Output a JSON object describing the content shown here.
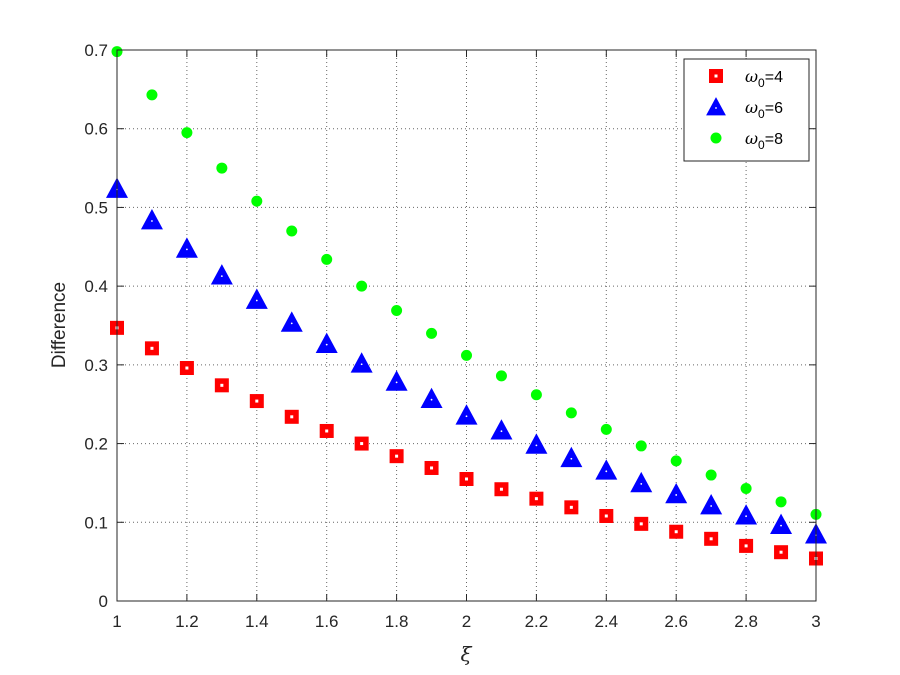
{
  "chart_data": {
    "type": "scatter",
    "title": "",
    "xlabel": "ξ",
    "ylabel": "Difference",
    "xlim": [
      1,
      3
    ],
    "ylim": [
      0,
      0.7
    ],
    "xticks": [
      "1",
      "1.2",
      "1.4",
      "1.6",
      "1.8",
      "2",
      "2.2",
      "2.4",
      "2.6",
      "2.8",
      "3"
    ],
    "yticks": [
      "0",
      "0.1",
      "0.2",
      "0.3",
      "0.4",
      "0.5",
      "0.6",
      "0.7"
    ],
    "grid": true,
    "legend_position": "top-right",
    "x": [
      1.0,
      1.1,
      1.2,
      1.3,
      1.4,
      1.5,
      1.6,
      1.7,
      1.8,
      1.9,
      2.0,
      2.1,
      2.2,
      2.3,
      2.4,
      2.5,
      2.6,
      2.7,
      2.8,
      2.9,
      3.0
    ],
    "series": [
      {
        "name_symbol": "ω",
        "name_sub": "0",
        "name_rest": "=4",
        "marker": "square",
        "color": "#ff0000",
        "values": [
          0.347,
          0.321,
          0.296,
          0.274,
          0.254,
          0.234,
          0.216,
          0.2,
          0.184,
          0.169,
          0.155,
          0.142,
          0.13,
          0.119,
          0.108,
          0.098,
          0.088,
          0.079,
          0.07,
          0.062,
          0.054
        ]
      },
      {
        "name_symbol": "ω",
        "name_sub": "0",
        "name_rest": "=6",
        "marker": "triangle",
        "color": "#0000ff",
        "values": [
          0.524,
          0.484,
          0.448,
          0.414,
          0.383,
          0.354,
          0.327,
          0.302,
          0.279,
          0.257,
          0.236,
          0.217,
          0.199,
          0.182,
          0.166,
          0.15,
          0.136,
          0.122,
          0.109,
          0.097,
          0.085
        ]
      },
      {
        "name_symbol": "ω",
        "name_sub": "0",
        "name_rest": "=8",
        "marker": "circle",
        "color": "#00ff00",
        "values": [
          0.698,
          0.643,
          0.595,
          0.55,
          0.508,
          0.47,
          0.434,
          0.4,
          0.369,
          0.34,
          0.312,
          0.286,
          0.262,
          0.239,
          0.218,
          0.197,
          0.178,
          0.16,
          0.143,
          0.126,
          0.11
        ]
      }
    ]
  }
}
